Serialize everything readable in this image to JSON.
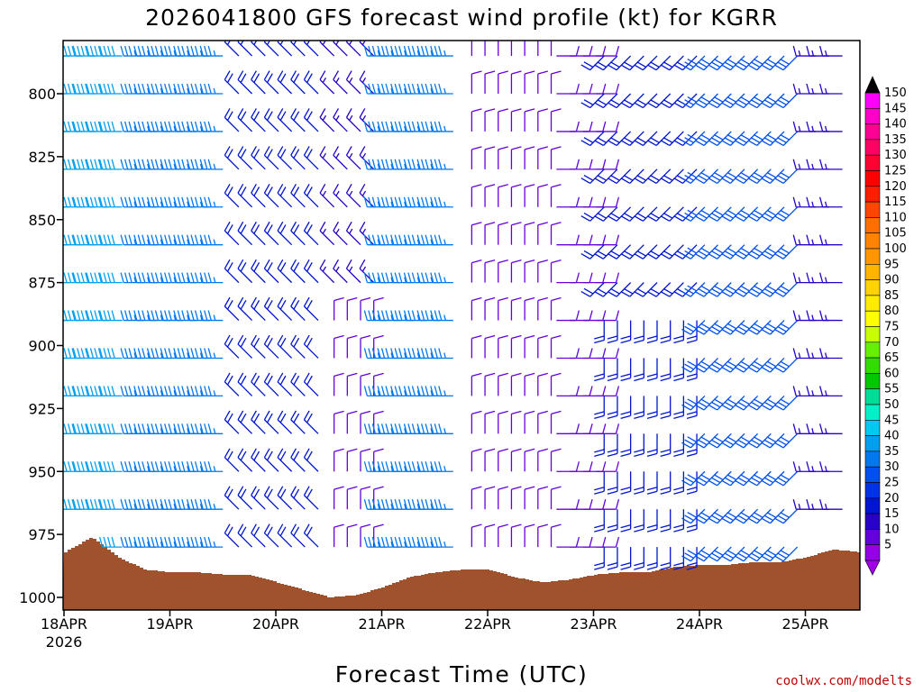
{
  "chart_data": {
    "type": "wind-barb-profile",
    "title": "2026041800 GFS forecast wind profile (kt) for KGRR",
    "xlabel": "Forecast Time (UTC)",
    "credit": "coolwx.com/modelts",
    "x_ticks": [
      {
        "label": "18APR",
        "sub": "2026",
        "day": 0
      },
      {
        "label": "19APR",
        "day": 1
      },
      {
        "label": "20APR",
        "day": 2
      },
      {
        "label": "21APR",
        "day": 3
      },
      {
        "label": "22APR",
        "day": 4
      },
      {
        "label": "23APR",
        "day": 5
      },
      {
        "label": "24APR",
        "day": 6
      },
      {
        "label": "25APR",
        "day": 7
      }
    ],
    "xlim_days": [
      0,
      7.5
    ],
    "y_ticks": [
      "800",
      "825",
      "850",
      "875",
      "900",
      "925",
      "950",
      "975",
      "1000"
    ],
    "y_tick_values": [
      800,
      825,
      850,
      875,
      900,
      925,
      950,
      975,
      1000
    ],
    "ylim_hpa": [
      780,
      1005
    ],
    "surface_pressure": {
      "days": [
        0,
        0.25,
        0.5,
        0.75,
        1.0,
        1.25,
        1.5,
        1.75,
        2.0,
        2.25,
        2.5,
        2.75,
        3.0,
        3.25,
        3.5,
        3.75,
        4.0,
        4.25,
        4.5,
        4.75,
        5.0,
        5.25,
        5.5,
        5.75,
        6.0,
        6.25,
        6.5,
        6.75,
        7.0,
        7.25,
        7.5
      ],
      "hpa": [
        982,
        976,
        984,
        989,
        990,
        990,
        991,
        991,
        994,
        997,
        1000,
        999,
        996,
        992,
        990,
        989,
        989,
        992,
        994,
        993,
        991,
        990,
        990,
        988,
        987,
        987,
        986,
        986,
        984,
        981,
        982
      ]
    },
    "wind_levels_hpa": [
      785,
      800,
      815,
      830,
      845,
      860,
      875,
      890,
      905,
      920,
      935,
      950,
      965,
      980
    ],
    "wind_segments": [
      {
        "start_day": 0.05,
        "end_day": 0.55,
        "levels": "all",
        "speed_kt": 40,
        "direction": "west"
      },
      {
        "start_day": 0.75,
        "end_day": 1.5,
        "levels": "all",
        "speed_kt": 35,
        "direction": "west"
      },
      {
        "start_day": 1.65,
        "end_day": 2.45,
        "levels": "all",
        "speed_kt": 20,
        "direction": "northwest"
      },
      {
        "start_day": 2.55,
        "end_day": 3.0,
        "levels": "lower",
        "speed_kt": 10,
        "direction": "north"
      },
      {
        "start_day": 2.55,
        "end_day": 3.0,
        "levels": "upper",
        "speed_kt": 15,
        "direction": "northwest"
      },
      {
        "start_day": 3.05,
        "end_day": 3.75,
        "levels": "all",
        "speed_kt": 35,
        "direction": "west"
      },
      {
        "start_day": 3.85,
        "end_day": 4.6,
        "levels": "all",
        "speed_kt": 10,
        "direction": "north"
      },
      {
        "start_day": 4.65,
        "end_day": 5.05,
        "levels": "all",
        "speed_kt": 10,
        "direction": "east"
      },
      {
        "start_day": 5.1,
        "end_day": 6.0,
        "levels": "lower",
        "speed_kt": 20,
        "direction": "south"
      },
      {
        "start_day": 5.1,
        "end_day": 6.0,
        "levels": "upper",
        "speed_kt": 20,
        "direction": "southwest"
      },
      {
        "start_day": 6.05,
        "end_day": 7.0,
        "levels": "all",
        "speed_kt": 30,
        "direction": "southwest"
      },
      {
        "start_day": 7.1,
        "end_day": 7.45,
        "levels": "all",
        "speed_kt": 15,
        "direction": "west"
      }
    ],
    "colorbar": {
      "labels": [
        "150",
        "145",
        "140",
        "135",
        "130",
        "125",
        "120",
        "115",
        "110",
        "105",
        "100",
        "95",
        "90",
        "85",
        "80",
        "75",
        "70",
        "65",
        "60",
        "55",
        "50",
        "45",
        "40",
        "35",
        "30",
        "25",
        "20",
        "15",
        "10",
        "5"
      ],
      "colors": [
        "#ff00ff",
        "#ff00c8",
        "#ff0096",
        "#ff0064",
        "#ff0032",
        "#ff0000",
        "#ff1e00",
        "#ff4600",
        "#ff6e00",
        "#ff8200",
        "#ff9600",
        "#ffb400",
        "#ffd200",
        "#ffeb00",
        "#ffff00",
        "#c8ff00",
        "#64f000",
        "#32dc00",
        "#00c800",
        "#00dc96",
        "#00f0c8",
        "#00c8f0",
        "#00a0f0",
        "#0078f0",
        "#0050f0",
        "#0032e6",
        "#0014d2",
        "#2800c8",
        "#6400dc",
        "#9600e6"
      ]
    },
    "colors": {
      "ground": "#a0522d",
      "frame": "#000000"
    }
  }
}
